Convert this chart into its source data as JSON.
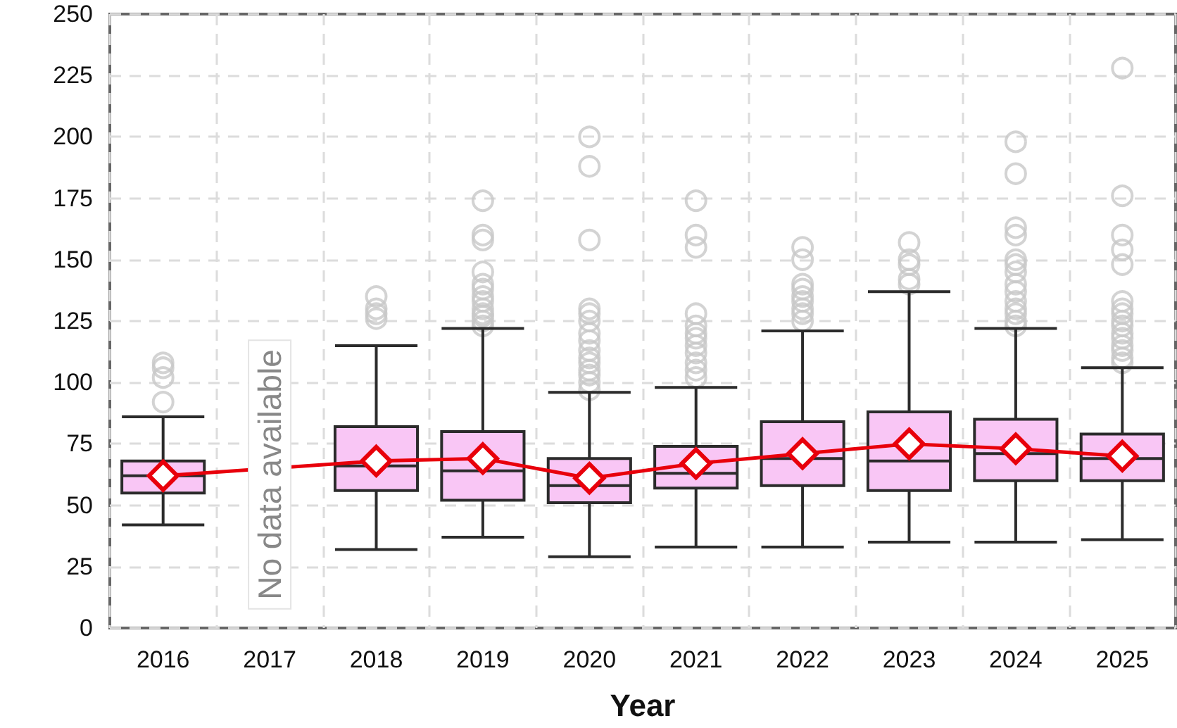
{
  "chart_data": {
    "type": "box",
    "xlabel": "Year",
    "categories": [
      "2016",
      "2017",
      "2018",
      "2019",
      "2020",
      "2021",
      "2022",
      "2023",
      "2024",
      "2025"
    ],
    "series": [
      {
        "type": "box",
        "color": "#f9c6f5",
        "boxes": [
          {
            "low": 42,
            "q1": 55,
            "median": 62,
            "q3": 68,
            "high": 86,
            "outliers": [
              92,
              102,
              106,
              108
            ]
          },
          null,
          {
            "low": 32,
            "q1": 56,
            "median": 66,
            "q3": 82,
            "high": 115,
            "outliers": [
              126,
              128,
              130,
              135
            ]
          },
          {
            "low": 37,
            "q1": 52,
            "median": 64,
            "q3": 80,
            "high": 122,
            "outliers": [
              123,
              125,
              127,
              128,
              130,
              133,
              135,
              138,
              140,
              145,
              158,
              160,
              174
            ]
          },
          {
            "low": 29,
            "q1": 51,
            "median": 58,
            "q3": 69,
            "high": 96,
            "outliers": [
              97,
              100,
              103,
              105,
              108,
              110,
              113,
              117,
              120,
              125,
              128,
              130,
              158,
              188,
              200
            ]
          },
          {
            "low": 33,
            "q1": 57,
            "median": 63,
            "q3": 74,
            "high": 98,
            "outliers": [
              102,
              105,
              108,
              112,
              115,
              118,
              120,
              123,
              128,
              155,
              160,
              174
            ]
          },
          {
            "low": 33,
            "q1": 58,
            "median": 69,
            "q3": 84,
            "high": 121,
            "outliers": [
              125,
              128,
              130,
              133,
              135,
              138,
              140,
              150,
              155
            ]
          },
          {
            "low": 35,
            "q1": 56,
            "median": 68,
            "q3": 88,
            "high": 137,
            "outliers": [
              140,
              142,
              148,
              150,
              157
            ]
          },
          {
            "low": 35,
            "q1": 60,
            "median": 71,
            "q3": 85,
            "high": 122,
            "outliers": [
              123,
              125,
              128,
              130,
              133,
              137,
              140,
              145,
              148,
              150,
              160,
              163,
              185,
              198
            ]
          },
          {
            "low": 36,
            "q1": 60,
            "median": 69,
            "q3": 79,
            "high": 106,
            "outliers": [
              108,
              110,
              113,
              115,
              118,
              120,
              123,
              125,
              128,
              130,
              133,
              148,
              154,
              160,
              176,
              228
            ]
          }
        ]
      },
      {
        "type": "line",
        "color": "#e8000b",
        "marker": "diamond",
        "values": [
          62,
          null,
          68,
          69,
          61,
          67,
          71,
          75,
          73,
          70
        ]
      }
    ],
    "annotations": [
      "No data available"
    ],
    "ylim": [
      0,
      250
    ],
    "yticks": [
      0,
      25,
      50,
      75,
      100,
      125,
      150,
      175,
      200,
      225,
      250
    ],
    "grid": true
  }
}
